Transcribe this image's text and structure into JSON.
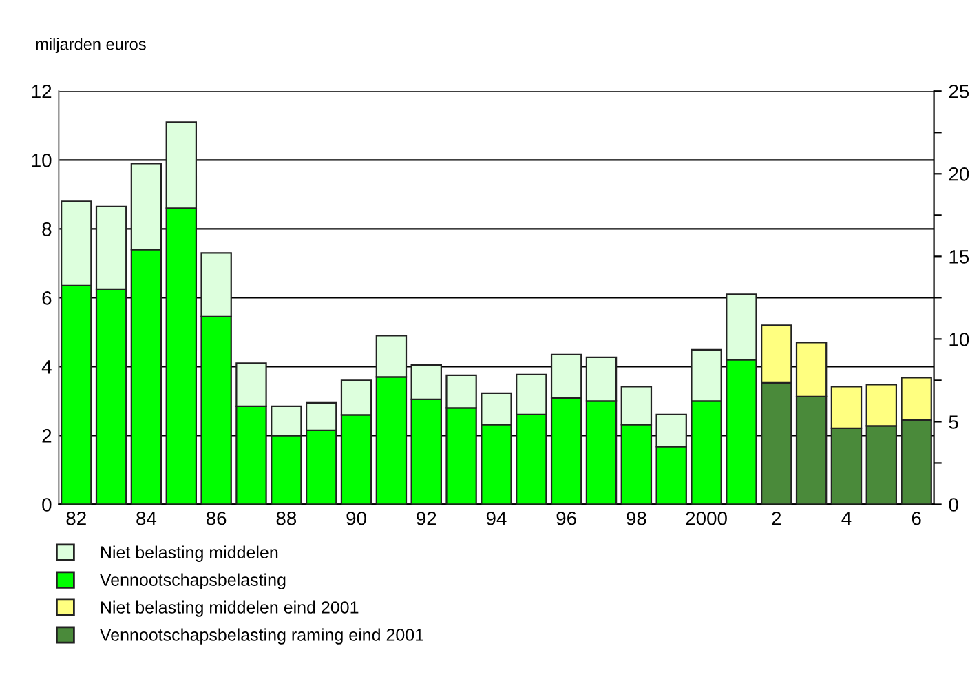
{
  "chart_data": {
    "type": "bar",
    "stacked": true,
    "ylabel": "miljarden euros",
    "categories": [
      "82",
      null,
      "84",
      null,
      "86",
      null,
      "88",
      null,
      "90",
      null,
      "92",
      null,
      "94",
      null,
      "96",
      null,
      "98",
      null,
      "2000",
      null,
      "2",
      null,
      "4",
      null,
      "6"
    ],
    "series": [
      {
        "name": "Vennootschapsbelasting",
        "color": "#00ff00",
        "values": [
          6.35,
          6.25,
          7.4,
          8.6,
          5.45,
          2.85,
          2.0,
          2.15,
          2.6,
          3.7,
          3.05,
          2.8,
          2.32,
          2.61,
          3.09,
          3.0,
          2.32,
          1.68,
          3.0,
          4.2,
          null,
          null,
          null,
          null,
          null
        ]
      },
      {
        "name": "Niet belasting middelen",
        "color": "#ddffdd",
        "values": [
          2.45,
          2.4,
          2.5,
          2.5,
          1.85,
          1.25,
          0.85,
          0.8,
          1.0,
          1.2,
          1.0,
          0.95,
          0.91,
          1.16,
          1.26,
          1.27,
          1.1,
          0.93,
          1.49,
          1.9,
          null,
          null,
          null,
          null,
          null
        ]
      },
      {
        "name": "Vennootschapsbelasting raming eind 2001",
        "color": "#4a8a3a",
        "values": [
          null,
          null,
          null,
          null,
          null,
          null,
          null,
          null,
          null,
          null,
          null,
          null,
          null,
          null,
          null,
          null,
          null,
          null,
          null,
          null,
          3.53,
          3.13,
          2.21,
          2.28,
          2.45
        ]
      },
      {
        "name": "Niet belasting middelen eind 2001",
        "color": "#ffff80",
        "values": [
          null,
          null,
          null,
          null,
          null,
          null,
          null,
          null,
          null,
          null,
          null,
          null,
          null,
          null,
          null,
          null,
          null,
          null,
          null,
          null,
          1.67,
          1.57,
          1.21,
          1.2,
          1.23
        ]
      }
    ],
    "ylim": [
      0,
      12
    ],
    "yticks": [
      0,
      2,
      4,
      6,
      8,
      10,
      12
    ],
    "y2lim": [
      0,
      25
    ],
    "y2ticks": [
      0,
      {
        "value": 2.5,
        "label": null
      },
      5,
      {
        "value": 7.5,
        "label": null
      },
      10,
      {
        "value": 12.5,
        "label": null
      },
      15,
      {
        "value": 17.5,
        "label": null
      },
      20,
      {
        "value": 22.5,
        "label": null
      },
      25
    ],
    "grid": "y",
    "legend": "bottom"
  }
}
